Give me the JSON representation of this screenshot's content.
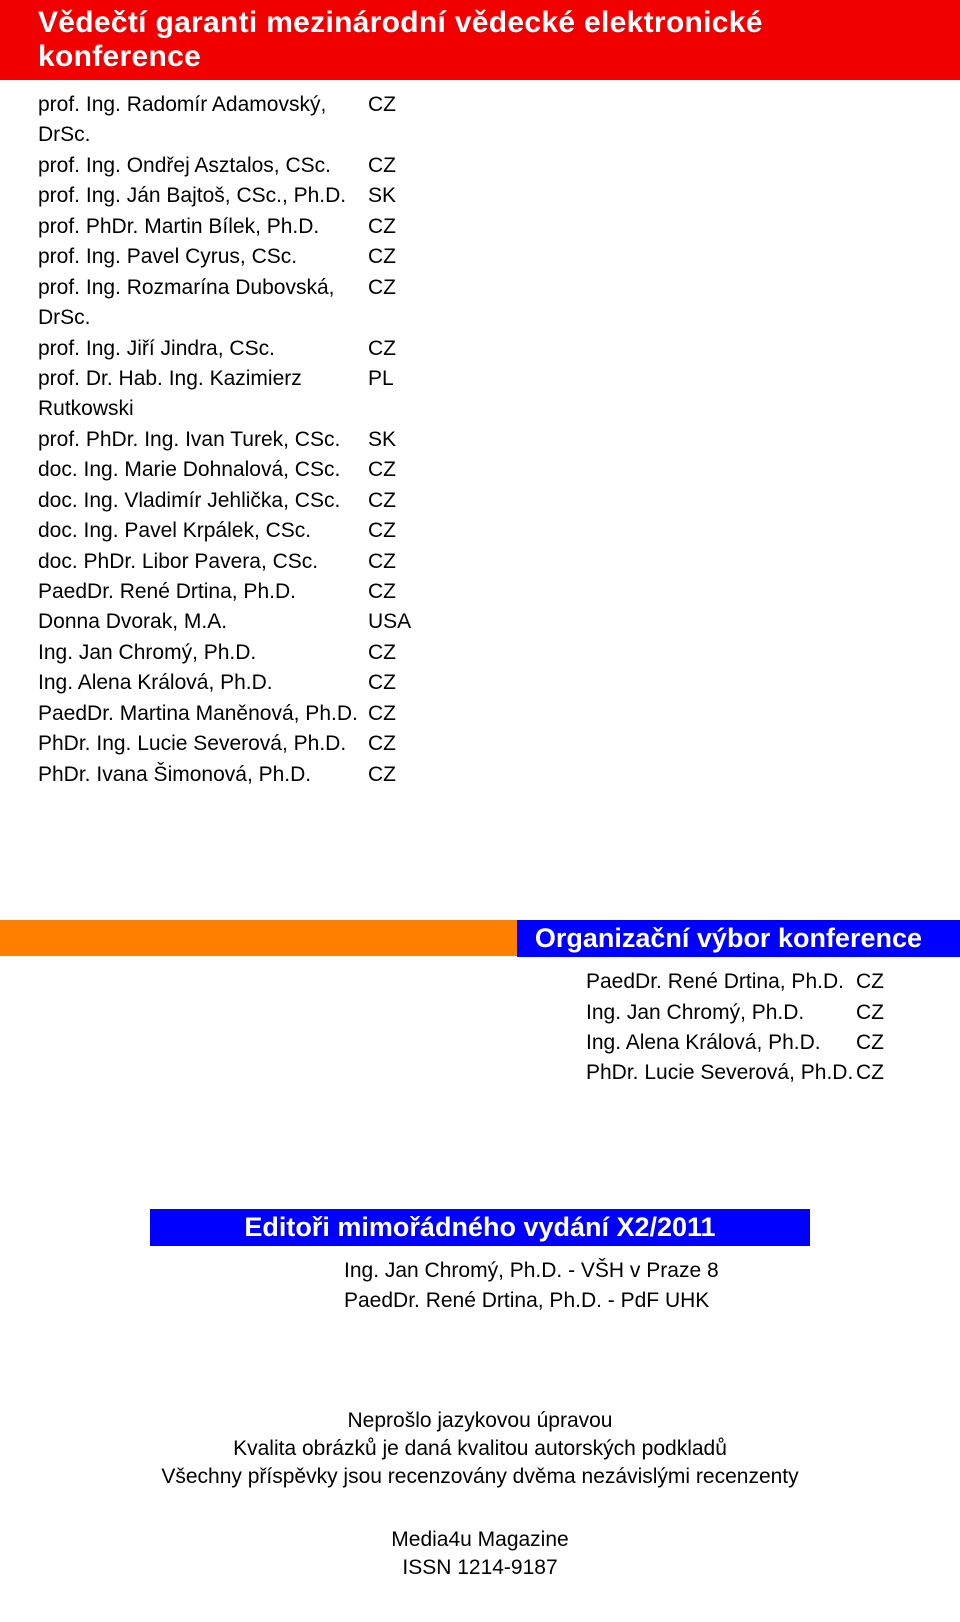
{
  "section1": {
    "title": "Vědečtí garanti mezinárodní vědecké elektronické konference",
    "people": [
      {
        "name": "prof. Ing. Radomír Adamovský, DrSc.",
        "country": "CZ"
      },
      {
        "name": "prof. Ing. Ondřej Asztalos, CSc.",
        "country": "CZ"
      },
      {
        "name": "prof. Ing. Ján Bajtoš, CSc., Ph.D.",
        "country": "SK"
      },
      {
        "name": "prof. PhDr. Martin Bílek, Ph.D.",
        "country": "CZ"
      },
      {
        "name": "prof. Ing. Pavel Cyrus, CSc.",
        "country": "CZ"
      },
      {
        "name": "prof. Ing. Rozmarína Dubovská, DrSc.",
        "country": "CZ"
      },
      {
        "name": "prof. Ing. Jiří Jindra, CSc.",
        "country": "CZ"
      },
      {
        "name": "prof. Dr. Hab. Ing. Kazimierz Rutkowski",
        "country": "PL"
      },
      {
        "name": "prof. PhDr. Ing. Ivan Turek, CSc.",
        "country": "SK"
      },
      {
        "name": "doc. Ing. Marie Dohnalová, CSc.",
        "country": "CZ"
      },
      {
        "name": "doc. Ing. Vladimír Jehlička, CSc.",
        "country": "CZ"
      },
      {
        "name": "doc. Ing. Pavel Krpálek, CSc.",
        "country": "CZ"
      },
      {
        "name": "doc. PhDr. Libor Pavera, CSc.",
        "country": "CZ"
      },
      {
        "name": "PaedDr. René Drtina, Ph.D.",
        "country": "CZ"
      },
      {
        "name": "Donna Dvorak, M.A.",
        "country": "USA"
      },
      {
        "name": "Ing. Jan Chromý, Ph.D.",
        "country": "CZ"
      },
      {
        "name": "Ing. Alena Králová, Ph.D.",
        "country": "CZ"
      },
      {
        "name": "PaedDr. Martina Maněnová, Ph.D.",
        "country": "CZ"
      },
      {
        "name": "PhDr. Ing. Lucie Severová, Ph.D.",
        "country": "CZ"
      },
      {
        "name": "PhDr. Ivana Šimonová, Ph.D.",
        "country": "CZ"
      }
    ]
  },
  "section2": {
    "title": "Organizační výbor konference",
    "people": [
      {
        "name": "PaedDr. René Drtina, Ph.D.",
        "country": "CZ"
      },
      {
        "name": "Ing. Jan Chromý, Ph.D.",
        "country": "CZ"
      },
      {
        "name": "Ing. Alena Králová, Ph.D.",
        "country": "CZ"
      },
      {
        "name": "PhDr. Lucie Severová, Ph.D.",
        "country": "CZ"
      }
    ]
  },
  "section3": {
    "title": "Editoři mimořádného vydání X2/2011",
    "editors": [
      "Ing. Jan Chromý, Ph.D. - VŠH v Praze 8",
      "PaedDr. René Drtina, Ph.D. - PdF UHK"
    ]
  },
  "footer": {
    "lines": [
      "Neprošlo jazykovou úpravou",
      "Kvalita obrázků je daná kvalitou autorských podkladů",
      "Všechny příspěvky jsou recenzovány dvěma nezávislými recenzenty"
    ],
    "magazine": [
      "Media4u Magazine",
      "ISSN 1214-9187"
    ]
  },
  "colors": {
    "red": "#f00000",
    "orange": "#ff7f00",
    "blue": "#0000ff",
    "white": "#ffffff",
    "black": "#000000"
  }
}
